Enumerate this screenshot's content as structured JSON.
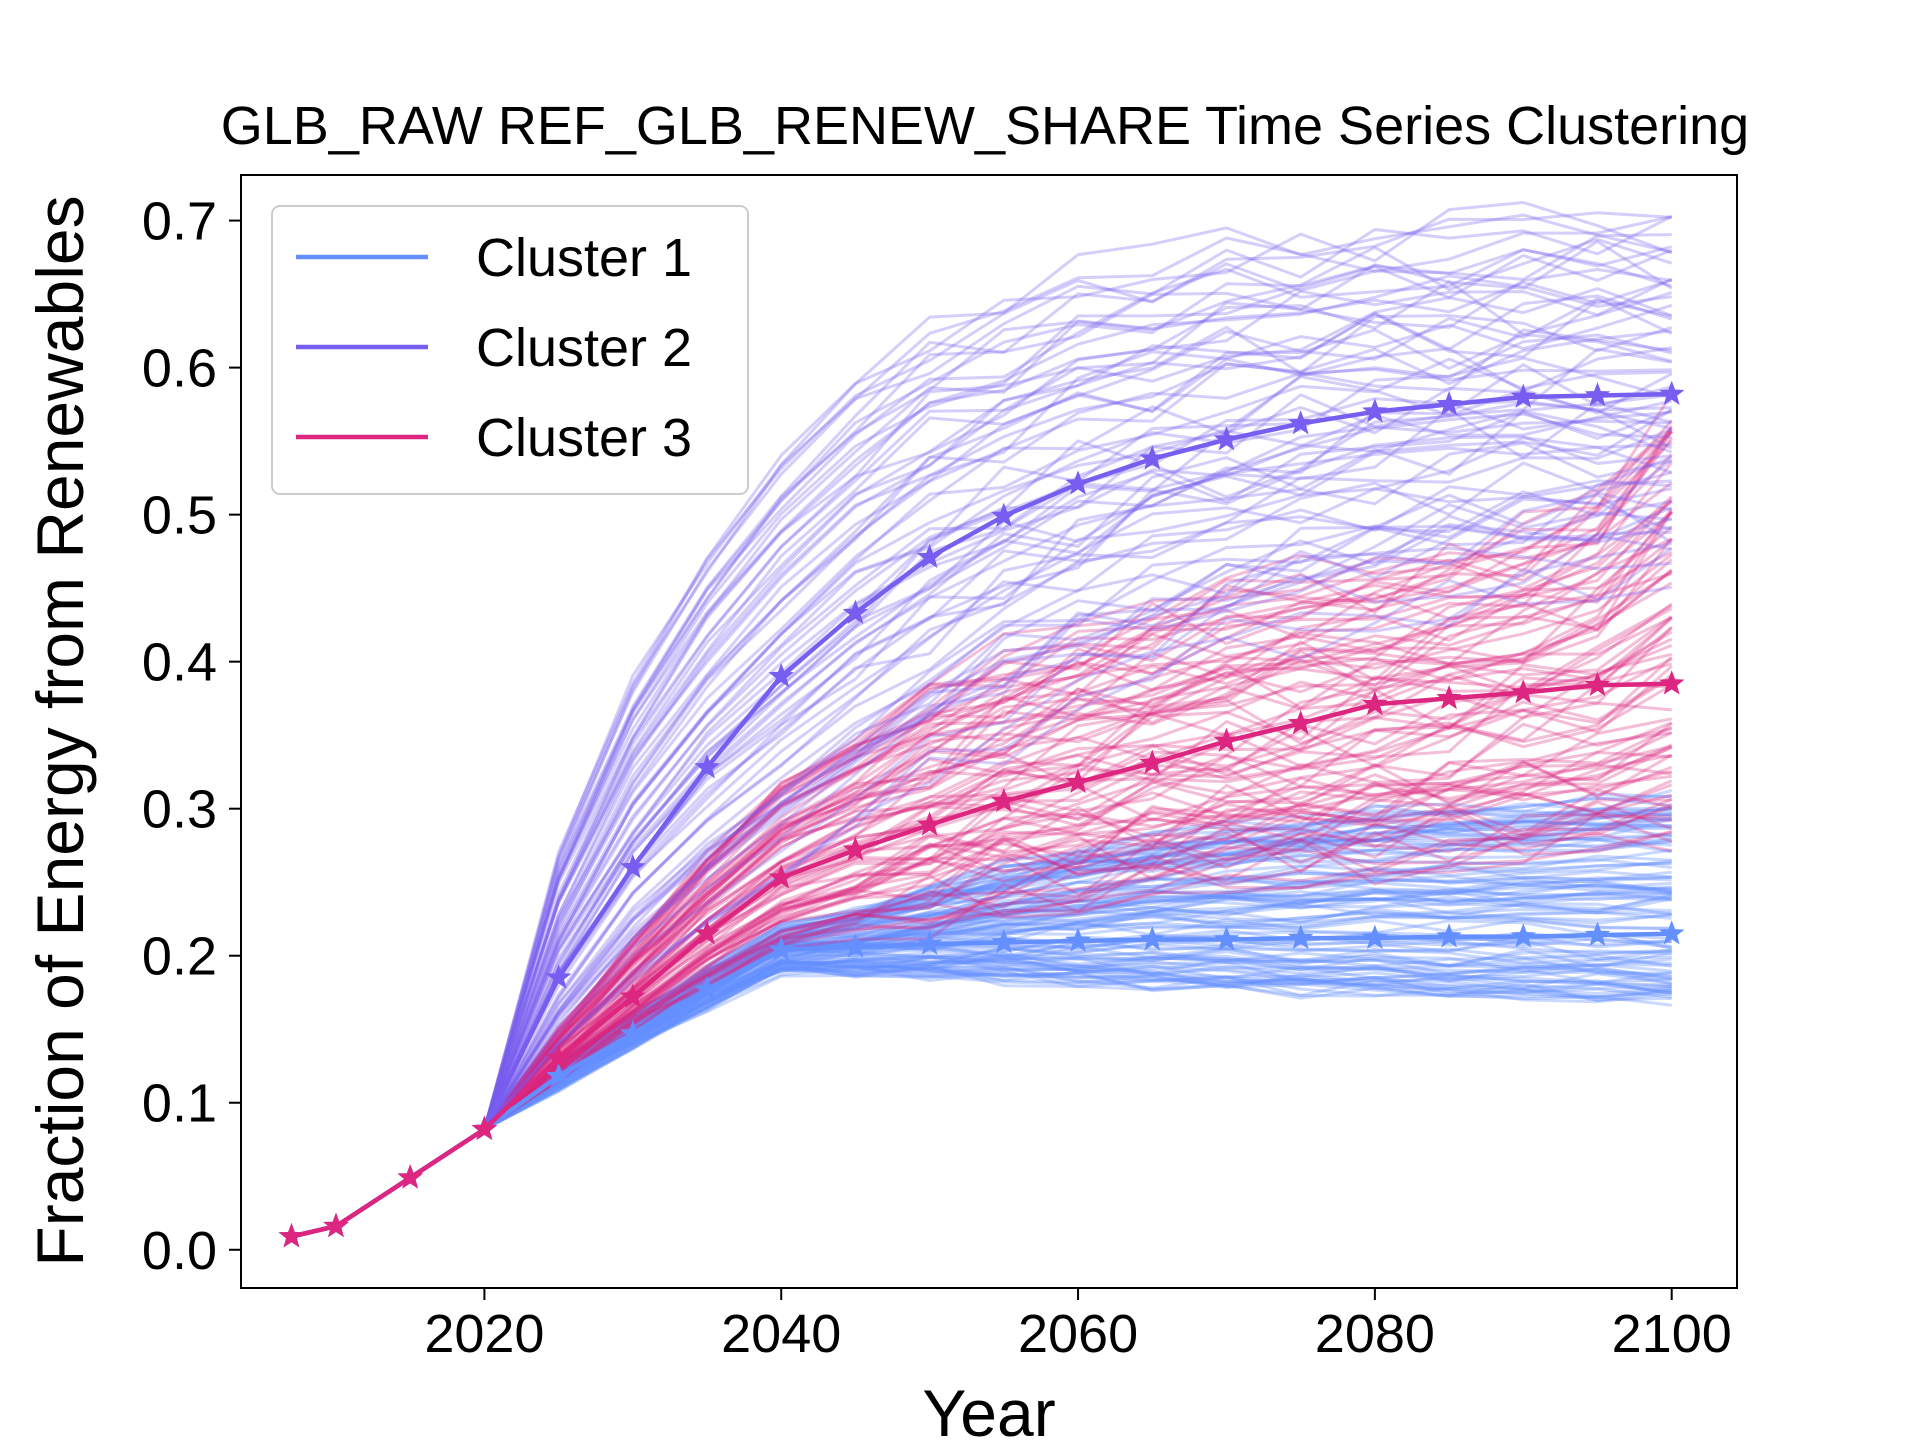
{
  "chart_data": {
    "type": "line",
    "title": "GLB_RAW REF_GLB_RENEW_SHARE Time Series Clustering",
    "xlabel": "Year",
    "ylabel": "Fraction of Energy from Renewables",
    "xlim": [
      2003.6,
      2104.4
    ],
    "ylim": [
      -0.026,
      0.731
    ],
    "xticks": [
      2020,
      2040,
      2060,
      2080,
      2100
    ],
    "yticks": [
      0.0,
      0.1,
      0.2,
      0.3,
      0.4,
      0.5,
      0.6,
      0.7
    ],
    "xtick_labels": [
      "2020",
      "2040",
      "2060",
      "2080",
      "2100"
    ],
    "ytick_labels": [
      "0.0",
      "0.1",
      "0.2",
      "0.3",
      "0.4",
      "0.5",
      "0.6",
      "0.7"
    ],
    "legend_position": "top-left",
    "grid": false,
    "x": [
      2007,
      2010,
      2015,
      2020,
      2025,
      2030,
      2035,
      2040,
      2045,
      2050,
      2055,
      2060,
      2065,
      2070,
      2075,
      2080,
      2085,
      2090,
      2095,
      2100
    ],
    "series": [
      {
        "name": "Cluster 1",
        "color": "#648FFF",
        "centroid": [
          0.009,
          0.016,
          0.049,
          0.082,
          0.118,
          0.147,
          0.177,
          0.204,
          0.206,
          0.208,
          0.209,
          0.21,
          0.211,
          0.211,
          0.212,
          0.212,
          0.213,
          0.213,
          0.214,
          0.215
        ],
        "range_low": [
          0.009,
          0.016,
          0.049,
          0.082,
          0.112,
          0.14,
          0.166,
          0.19,
          0.189,
          0.187,
          0.185,
          0.183,
          0.181,
          0.179,
          0.177,
          0.176,
          0.174,
          0.173,
          0.171,
          0.17
        ],
        "range_high": [
          0.009,
          0.016,
          0.049,
          0.082,
          0.125,
          0.158,
          0.19,
          0.218,
          0.23,
          0.245,
          0.26,
          0.272,
          0.28,
          0.287,
          0.292,
          0.297,
          0.3,
          0.302,
          0.305,
          0.307
        ]
      },
      {
        "name": "Cluster 2",
        "color": "#785EF0",
        "centroid": [
          0.009,
          0.016,
          0.049,
          0.082,
          0.185,
          0.26,
          0.328,
          0.39,
          0.433,
          0.471,
          0.499,
          0.521,
          0.538,
          0.551,
          0.562,
          0.57,
          0.575,
          0.58,
          0.581,
          0.582
        ],
        "range_low": [
          0.009,
          0.016,
          0.049,
          0.082,
          0.13,
          0.175,
          0.21,
          0.24,
          0.275,
          0.305,
          0.335,
          0.36,
          0.38,
          0.395,
          0.41,
          0.42,
          0.43,
          0.44,
          0.445,
          0.45
        ],
        "range_high": [
          0.009,
          0.016,
          0.049,
          0.082,
          0.27,
          0.39,
          0.475,
          0.54,
          0.59,
          0.625,
          0.648,
          0.663,
          0.673,
          0.681,
          0.687,
          0.691,
          0.693,
          0.694,
          0.694,
          0.694
        ]
      },
      {
        "name": "Cluster 3",
        "color": "#DC267F",
        "centroid": [
          0.009,
          0.016,
          0.049,
          0.082,
          0.13,
          0.172,
          0.215,
          0.253,
          0.272,
          0.289,
          0.305,
          0.318,
          0.331,
          0.346,
          0.358,
          0.371,
          0.375,
          0.379,
          0.384,
          0.385
        ],
        "range_low": [
          0.009,
          0.016,
          0.049,
          0.082,
          0.118,
          0.15,
          0.178,
          0.205,
          0.215,
          0.225,
          0.232,
          0.24,
          0.245,
          0.25,
          0.255,
          0.258,
          0.262,
          0.265,
          0.268,
          0.27
        ],
        "range_high": [
          0.009,
          0.016,
          0.049,
          0.082,
          0.15,
          0.21,
          0.27,
          0.32,
          0.35,
          0.38,
          0.405,
          0.42,
          0.435,
          0.445,
          0.455,
          0.465,
          0.475,
          0.49,
          0.51,
          0.575
        ]
      }
    ]
  }
}
